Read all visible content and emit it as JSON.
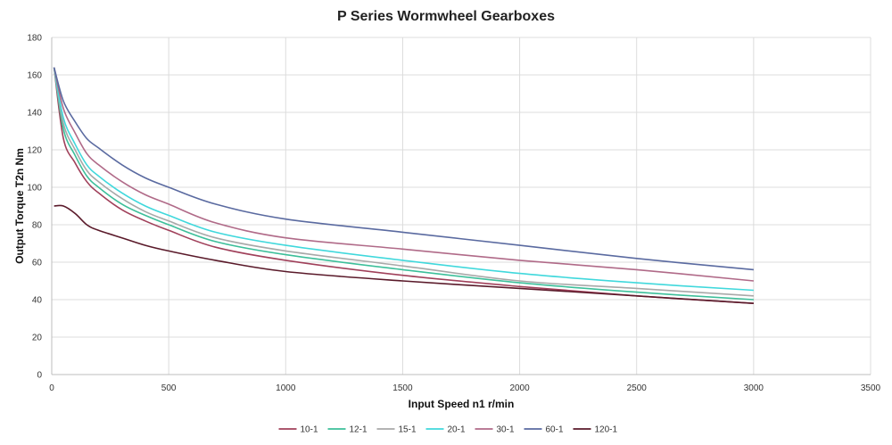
{
  "chart_data": {
    "type": "line",
    "title": "P Series Wormwheel Gearboxes",
    "xlabel": "Input Speed n1 r/min",
    "ylabel": "Output Torque T2n Nm",
    "xlim": [
      0,
      3500
    ],
    "ylim": [
      0,
      180
    ],
    "xticks": [
      0,
      500,
      1000,
      1500,
      2000,
      2500,
      3000,
      3500
    ],
    "yticks": [
      0,
      20,
      40,
      60,
      80,
      100,
      120,
      140,
      160,
      180
    ],
    "grid": true,
    "legend_position": "bottom",
    "x": [
      10,
      50,
      100,
      150,
      200,
      300,
      400,
      500,
      700,
      1000,
      1500,
      2000,
      2500,
      3000
    ],
    "series": [
      {
        "name": "10-1",
        "color": "#a0405a",
        "values": [
          164,
          126,
          113,
          103,
          97,
          88,
          82,
          77,
          68,
          61,
          53,
          47,
          42,
          38
        ]
      },
      {
        "name": "12-1",
        "color": "#3cbf9a",
        "values": [
          164,
          131,
          117,
          106,
          100,
          91,
          85,
          80,
          71,
          64,
          56,
          49,
          44,
          40
        ]
      },
      {
        "name": "15-1",
        "color": "#a8a8a8",
        "values": [
          164,
          134,
          120,
          109,
          103,
          94,
          87,
          82,
          73,
          66,
          58,
          50,
          46,
          42
        ]
      },
      {
        "name": "20-1",
        "color": "#40d8dc",
        "values": [
          164,
          137,
          123,
          112,
          106,
          97,
          90,
          85,
          76,
          69,
          61,
          54,
          49,
          45
        ]
      },
      {
        "name": "30-1",
        "color": "#b06a88",
        "values": [
          164,
          142,
          129,
          118,
          112,
          103,
          96,
          91,
          81,
          73,
          67,
          61,
          56,
          50
        ]
      },
      {
        "name": "60-1",
        "color": "#5a6aa0",
        "values": [
          164,
          146,
          135,
          126,
          121,
          112,
          105,
          100,
          91,
          83,
          76,
          69,
          62,
          56
        ]
      },
      {
        "name": "120-1",
        "color": "#5a1a2a",
        "values": [
          90,
          90,
          86,
          80,
          77,
          73,
          69,
          66,
          61,
          55,
          50,
          46,
          42,
          38
        ]
      }
    ]
  }
}
